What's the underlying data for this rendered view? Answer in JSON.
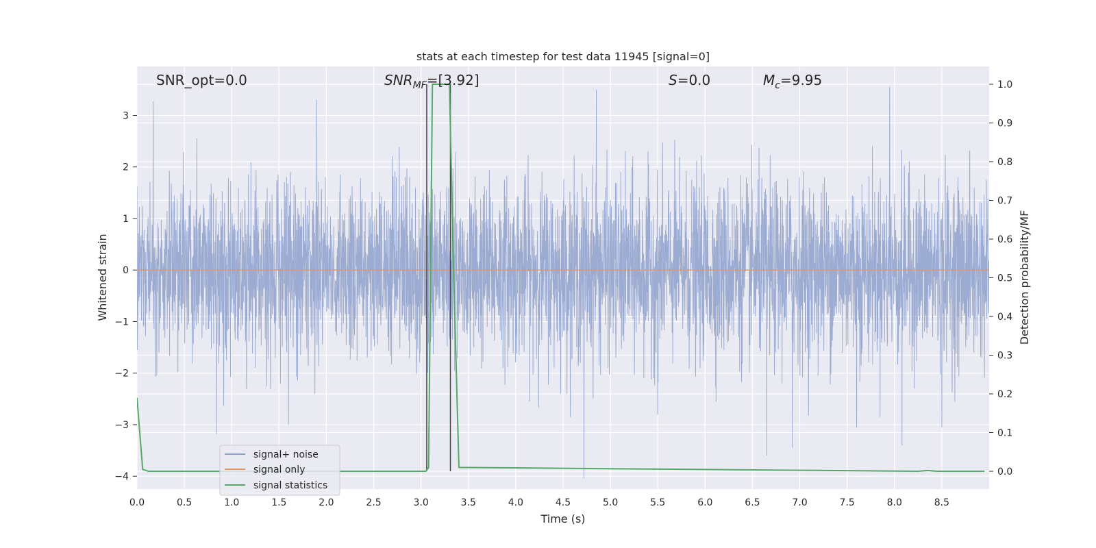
{
  "chart_data": {
    "type": "line",
    "title": "stats at each timestep for test data 11945 [signal=0]",
    "xlabel": "Time (s)",
    "ylabel": "Whitened strain",
    "y2label": "Detection probability/MF",
    "xlim": [
      0.0,
      9.0
    ],
    "ylim": [
      -4.25,
      3.95
    ],
    "y2lim": [
      -0.046,
      1.046
    ],
    "x_ticks": [
      "0.0",
      "0.5",
      "1.0",
      "1.5",
      "2.0",
      "2.5",
      "3.0",
      "3.5",
      "4.0",
      "4.5",
      "5.0",
      "5.5",
      "6.0",
      "6.5",
      "7.0",
      "7.5",
      "8.0",
      "8.5"
    ],
    "y_ticks": [
      "3",
      "2",
      "1",
      "0",
      "−1",
      "−2",
      "−3",
      "−4"
    ],
    "y2_ticks": [
      "1.0",
      "0.9",
      "0.8",
      "0.7",
      "0.6",
      "0.5",
      "0.4",
      "0.3",
      "0.2",
      "0.1",
      "0.0"
    ],
    "grid": true,
    "legend_position": "lower-left",
    "annotations": {
      "snr_opt": "SNR_opt=0.0",
      "snr_mf_base": "SNR",
      "snr_mf_sub": "MF",
      "snr_mf_value": "=[3.92]",
      "s_label": "S",
      "s_value": "=0.0",
      "mc_base": "M",
      "mc_sub": "c",
      "mc_value": "=9.95"
    },
    "vlines": [
      3.06,
      3.31
    ],
    "series": [
      {
        "name": "signal+ noise",
        "color": "#8da0cb",
        "noise_sigma": 0.85,
        "x_range": [
          0.0,
          9.0
        ],
        "peaks": [
          [
            0.17,
            3.27
          ],
          [
            0.84,
            -3.18
          ],
          [
            1.6,
            -3.0
          ],
          [
            1.9,
            3.3
          ],
          [
            4.72,
            -4.05
          ],
          [
            4.85,
            3.5
          ],
          [
            5.5,
            -2.8
          ],
          [
            6.65,
            -3.6
          ],
          [
            6.92,
            -3.45
          ],
          [
            7.6,
            -3.05
          ],
          [
            7.95,
            3.55
          ],
          [
            8.08,
            -3.4
          ],
          [
            8.5,
            -3.05
          ]
        ]
      },
      {
        "name": "signal only",
        "color": "#e5956b",
        "y": 0.0
      },
      {
        "name": "signal statistics",
        "color": "#55a868",
        "x": [
          0.0,
          0.06,
          0.12,
          3.05,
          3.08,
          3.12,
          3.3,
          3.34,
          3.4,
          8.25,
          8.35,
          8.45,
          8.95
        ],
        "y": [
          0.19,
          0.005,
          0.0,
          0.0,
          0.01,
          1.0,
          1.0,
          0.55,
          0.01,
          0.0,
          0.002,
          0.0,
          0.0
        ]
      }
    ]
  }
}
